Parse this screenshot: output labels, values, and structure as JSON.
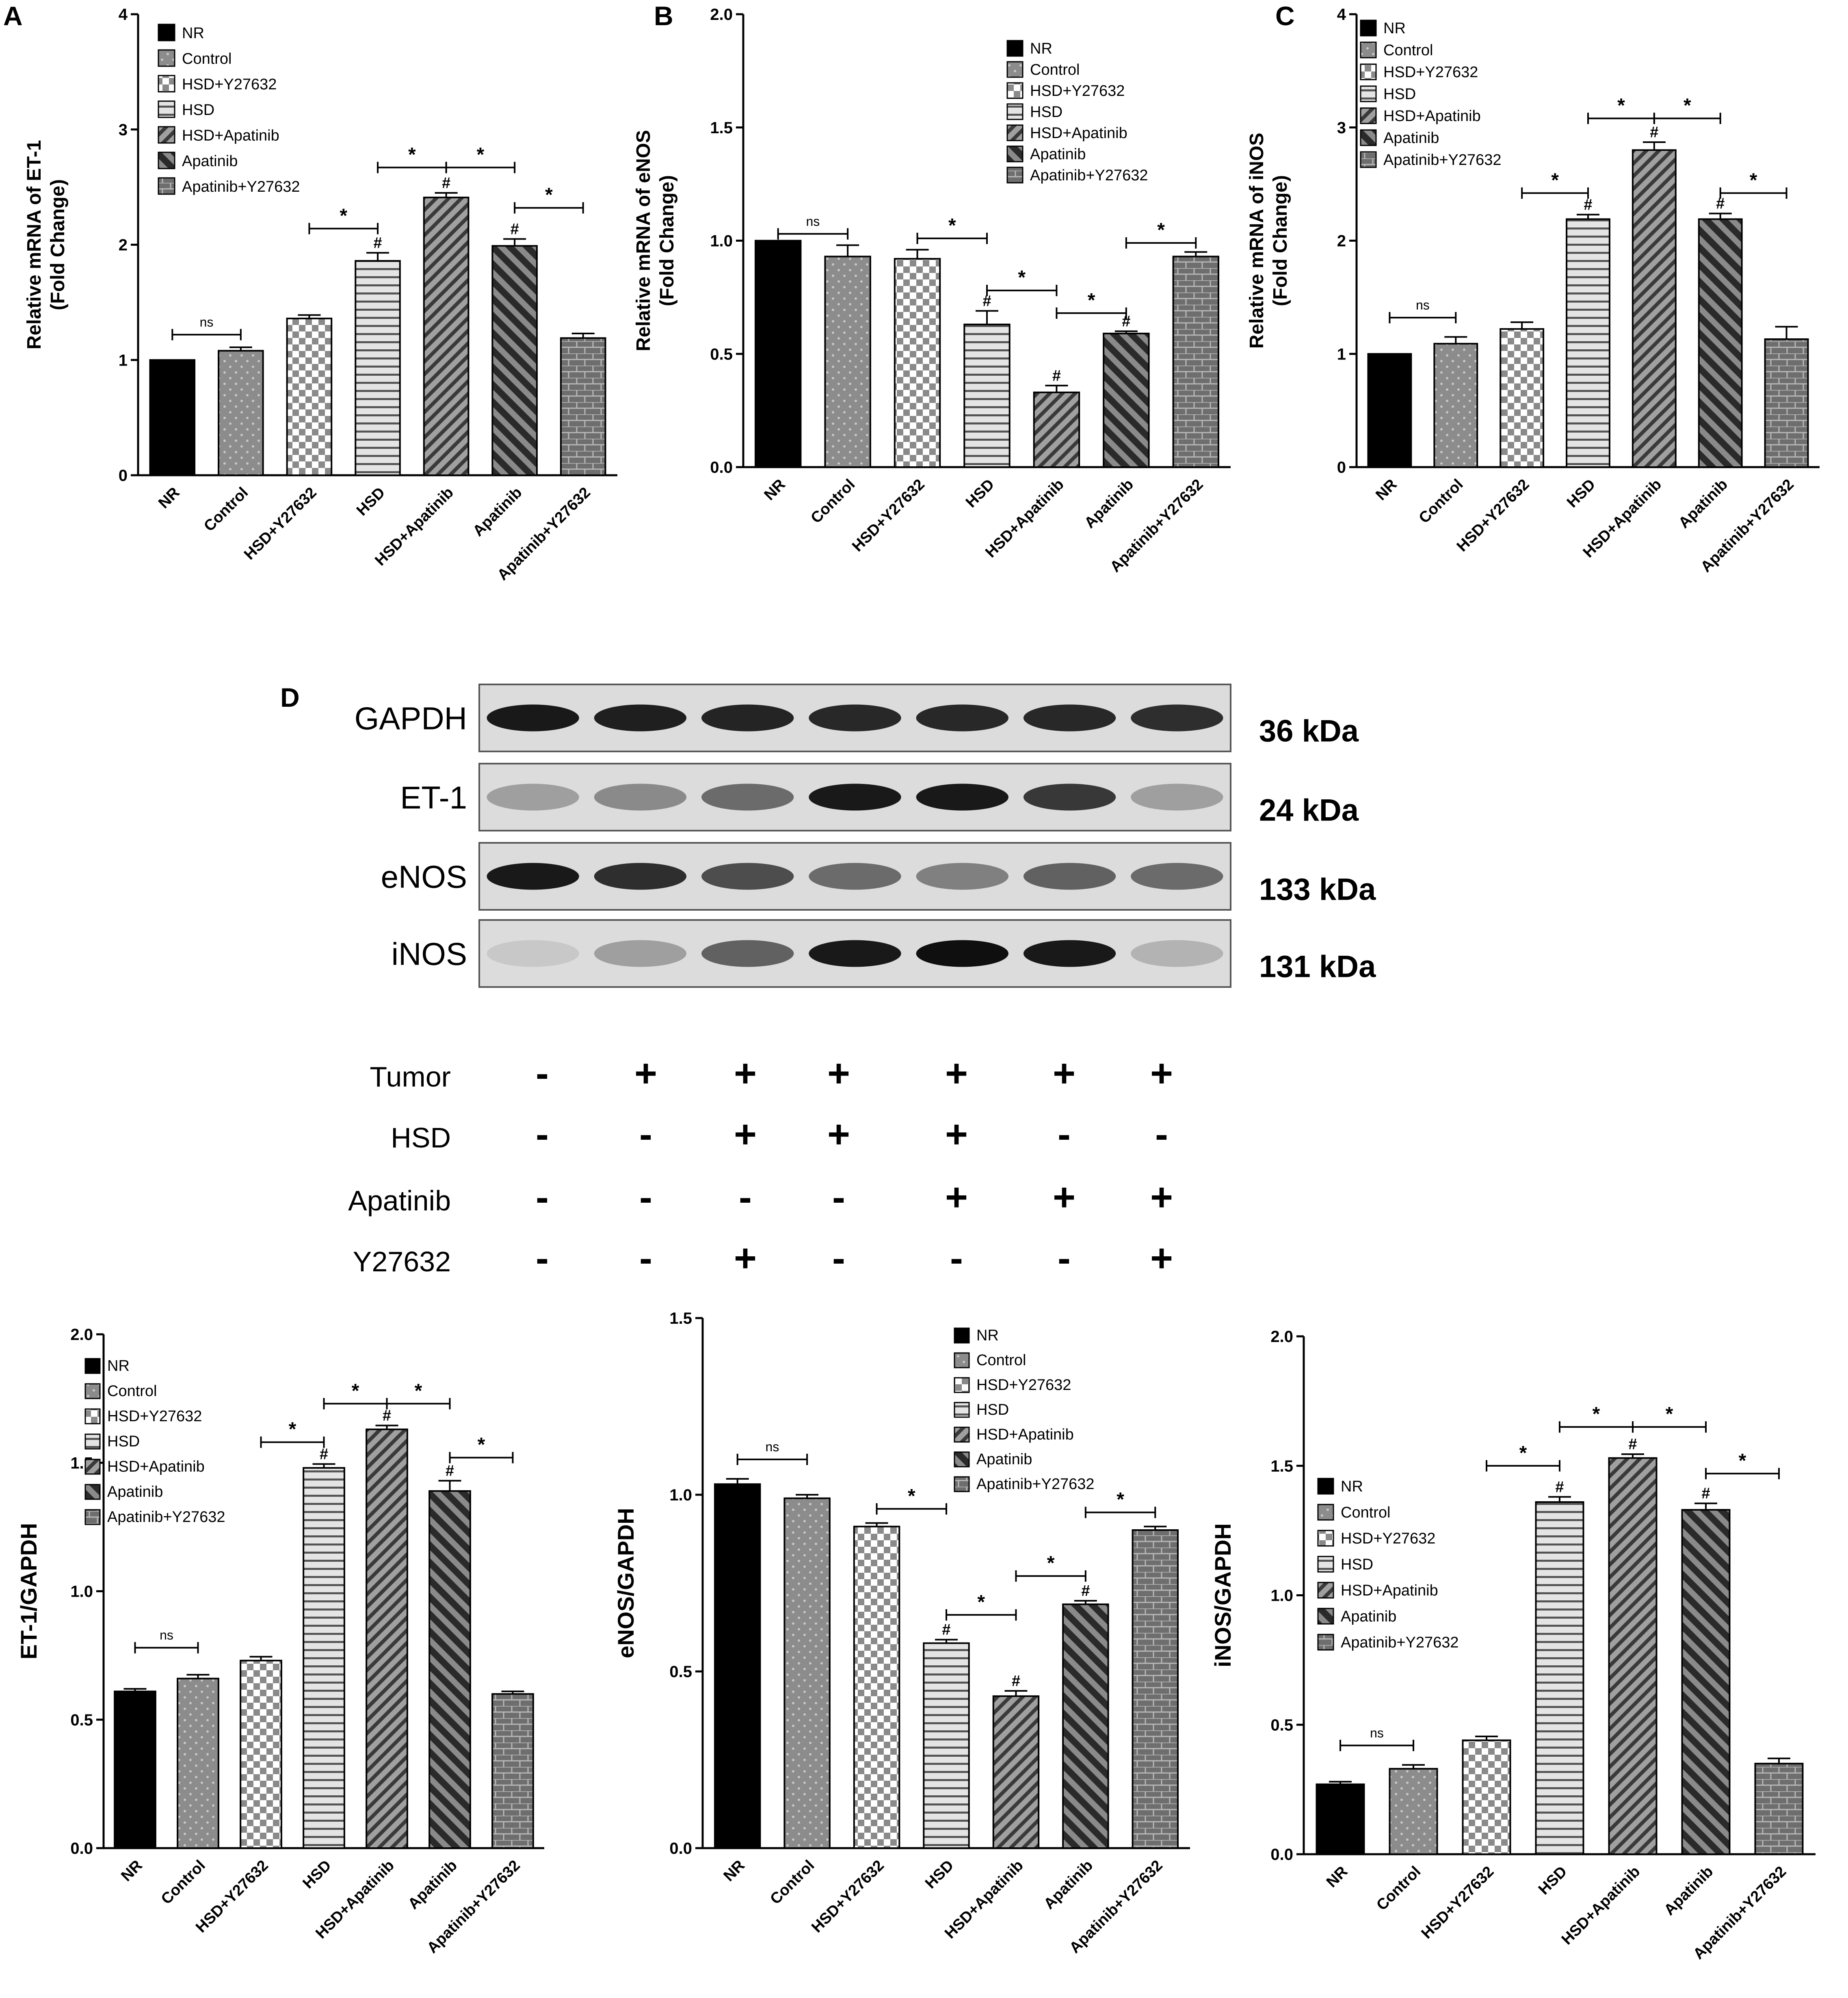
{
  "patterns": {
    "NR": "solid-black",
    "Control": "dark-gray-dotted",
    "HSD+Y27632": "checkerboard",
    "HSD": "horizontal-stripes",
    "HSD+Apatinib": "diagonal-stripes-right",
    "Apatinib": "diagonal-stripes-left-dark",
    "Apatinib+Y27632": "brick"
  },
  "colors": {
    "bar_outline": "#000000",
    "fill_dark": "#111111",
    "fill_mid": "#8c8c8c",
    "fill_light": "#d9d9d9",
    "background": "#ffffff"
  },
  "chart_data": [
    {
      "panel": "A",
      "type": "bar",
      "title": "",
      "ylabel_line1": "Relative mRNA of ET-1",
      "ylabel_line2": "(Fold Change)",
      "ylim": [
        0,
        4
      ],
      "yticks": [
        "0",
        "1",
        "2",
        "3",
        "4"
      ],
      "categories": [
        "NR",
        "Control",
        "HSD+Y27632",
        "HSD",
        "HSD+Apatinib",
        "Apatinib",
        "Apatinib+Y27632"
      ],
      "values": [
        1.0,
        1.08,
        1.36,
        1.86,
        2.41,
        1.99,
        1.19
      ],
      "errors": [
        0.0,
        0.03,
        0.03,
        0.07,
        0.04,
        0.06,
        0.04
      ],
      "hash_marks": [
        false,
        false,
        false,
        true,
        true,
        true,
        false
      ],
      "comparisons": [
        {
          "from": 0,
          "to": 1,
          "label": "ns",
          "y": 1.22
        },
        {
          "from": 2,
          "to": 3,
          "label": "*",
          "y": 2.14
        },
        {
          "from": 3,
          "to": 4,
          "label": "*",
          "y": 2.67
        },
        {
          "from": 4,
          "to": 5,
          "label": "*",
          "y": 2.67
        },
        {
          "from": 5,
          "to": 6,
          "label": "*",
          "y": 2.32
        }
      ],
      "legend": [
        "NR",
        "Control",
        "HSD+Y27632",
        "HSD",
        "HSD+Apatinib",
        "Apatinib",
        "Apatinib+Y27632"
      ],
      "legend_position": "top-left"
    },
    {
      "panel": "B",
      "type": "bar",
      "title": "",
      "ylabel_line1": "Relative mRNA of eNOS",
      "ylabel_line2": "(Fold Change)",
      "ylim": [
        0,
        2.0
      ],
      "yticks": [
        "0.0",
        "0.5",
        "1.0",
        "1.5",
        "2.0"
      ],
      "categories": [
        "NR",
        "Control",
        "HSD+Y27632",
        "HSD",
        "HSD+Apatinib",
        "Apatinib",
        "Apatinib+Y27632"
      ],
      "values": [
        1.0,
        0.93,
        0.92,
        0.63,
        0.33,
        0.59,
        0.93
      ],
      "errors": [
        0.0,
        0.05,
        0.04,
        0.06,
        0.03,
        0.01,
        0.02
      ],
      "hash_marks": [
        false,
        false,
        false,
        true,
        true,
        true,
        false
      ],
      "comparisons": [
        {
          "from": 0,
          "to": 1,
          "label": "ns",
          "y": 1.03
        },
        {
          "from": 2,
          "to": 3,
          "label": "*",
          "y": 1.01
        },
        {
          "from": 3,
          "to": 4,
          "label": "*",
          "y": 0.78
        },
        {
          "from": 4,
          "to": 5,
          "label": "*",
          "y": 0.68
        },
        {
          "from": 5,
          "to": 6,
          "label": "*",
          "y": 0.99
        }
      ],
      "legend": [
        "NR",
        "Control",
        "HSD+Y27632",
        "HSD",
        "HSD+Apatinib",
        "Apatinib",
        "Apatinib+Y27632"
      ],
      "legend_position": "top-right"
    },
    {
      "panel": "C",
      "type": "bar",
      "title": "",
      "ylabel_line1": "Relative mRNA of iNOS",
      "ylabel_line2": "(Fold Change)",
      "ylim": [
        0,
        4
      ],
      "yticks": [
        "0",
        "1",
        "2",
        "3",
        "4"
      ],
      "categories": [
        "NR",
        "Control",
        "HSD+Y27632",
        "HSD",
        "HSD+Apatinib",
        "Apatinib",
        "Apatinib+Y27632"
      ],
      "values": [
        1.0,
        1.09,
        1.22,
        2.19,
        2.8,
        2.19,
        1.13
      ],
      "errors": [
        0.0,
        0.06,
        0.06,
        0.04,
        0.07,
        0.05,
        0.11
      ],
      "hash_marks": [
        false,
        false,
        false,
        true,
        true,
        true,
        false
      ],
      "comparisons": [
        {
          "from": 0,
          "to": 1,
          "label": "ns",
          "y": 1.32
        },
        {
          "from": 2,
          "to": 3,
          "label": "*",
          "y": 2.42
        },
        {
          "from": 3,
          "to": 4,
          "label": "*",
          "y": 3.08
        },
        {
          "from": 4,
          "to": 5,
          "label": "*",
          "y": 3.08
        },
        {
          "from": 5,
          "to": 6,
          "label": "*",
          "y": 2.42
        }
      ],
      "legend": [
        "NR",
        "Control",
        "HSD+Y27632",
        "HSD",
        "HSD+Apatinib",
        "Apatinib",
        "Apatinib+Y27632"
      ],
      "legend_position": "top-left"
    },
    {
      "panel": "D-ET1",
      "type": "bar",
      "title": "",
      "ylabel_line1": "ET-1/GAPDH",
      "ylabel_line2": "",
      "ylim": [
        0,
        2.0
      ],
      "yticks": [
        "0.0",
        "0.5",
        "1.0",
        "1.5",
        "2.0"
      ],
      "categories": [
        "NR",
        "Control",
        "HSD+Y27632",
        "HSD",
        "HSD+Apatinib",
        "Apatinib",
        "Apatinib+Y27632"
      ],
      "values": [
        0.61,
        0.66,
        0.73,
        1.48,
        1.63,
        1.39,
        0.6
      ],
      "errors": [
        0.01,
        0.015,
        0.015,
        0.015,
        0.015,
        0.04,
        0.01
      ],
      "hash_marks": [
        false,
        false,
        false,
        true,
        true,
        true,
        false
      ],
      "comparisons": [
        {
          "from": 0,
          "to": 1,
          "label": "ns",
          "y": 0.78
        },
        {
          "from": 2,
          "to": 3,
          "label": "*",
          "y": 1.58
        },
        {
          "from": 3,
          "to": 4,
          "label": "*",
          "y": 1.73
        },
        {
          "from": 4,
          "to": 5,
          "label": "*",
          "y": 1.73
        },
        {
          "from": 5,
          "to": 6,
          "label": "*",
          "y": 1.52
        }
      ],
      "legend": [
        "NR",
        "Control",
        "HSD+Y27632",
        "HSD",
        "HSD+Apatinib",
        "Apatinib",
        "Apatinib+Y27632"
      ],
      "legend_position": "top-left"
    },
    {
      "panel": "D-eNOS",
      "type": "bar",
      "title": "",
      "ylabel_line1": "eNOS/GAPDH",
      "ylabel_line2": "",
      "ylim": [
        0,
        1.5
      ],
      "yticks": [
        "0.0",
        "0.5",
        "1.0",
        "1.5"
      ],
      "categories": [
        "NR",
        "Control",
        "HSD+Y27632",
        "HSD",
        "HSD+Apatinib",
        "Apatinib",
        "Apatinib+Y27632"
      ],
      "values": [
        1.03,
        0.99,
        0.91,
        0.58,
        0.43,
        0.69,
        0.9
      ],
      "errors": [
        0.015,
        0.01,
        0.01,
        0.01,
        0.015,
        0.01,
        0.01
      ],
      "hash_marks": [
        false,
        false,
        false,
        true,
        true,
        true,
        false
      ],
      "comparisons": [
        {
          "from": 0,
          "to": 1,
          "label": "ns",
          "y": 1.1
        },
        {
          "from": 2,
          "to": 3,
          "label": "*",
          "y": 0.96
        },
        {
          "from": 3,
          "to": 4,
          "label": "*",
          "y": 0.66
        },
        {
          "from": 4,
          "to": 5,
          "label": "*",
          "y": 0.77
        },
        {
          "from": 5,
          "to": 6,
          "label": "*",
          "y": 0.95
        }
      ],
      "legend": [
        "NR",
        "Control",
        "HSD+Y27632",
        "HSD",
        "HSD+Apatinib",
        "Apatinib",
        "Apatinib+Y27632"
      ],
      "legend_position": "top-right"
    },
    {
      "panel": "D-iNOS",
      "type": "bar",
      "title": "",
      "ylabel_line1": "iNOS/GAPDH",
      "ylabel_line2": "",
      "ylim": [
        0,
        2.0
      ],
      "yticks": [
        "0.0",
        "0.5",
        "1.0",
        "1.5",
        "2.0"
      ],
      "categories": [
        "NR",
        "Control",
        "HSD+Y27632",
        "HSD",
        "HSD+Apatinib",
        "Apatinib",
        "Apatinib+Y27632"
      ],
      "values": [
        0.27,
        0.33,
        0.44,
        1.36,
        1.53,
        1.33,
        0.35
      ],
      "errors": [
        0.01,
        0.015,
        0.015,
        0.02,
        0.015,
        0.025,
        0.02
      ],
      "hash_marks": [
        false,
        false,
        false,
        true,
        true,
        true,
        false
      ],
      "comparisons": [
        {
          "from": 0,
          "to": 1,
          "label": "ns",
          "y": 0.42
        },
        {
          "from": 2,
          "to": 3,
          "label": "*",
          "y": 1.5
        },
        {
          "from": 3,
          "to": 4,
          "label": "*",
          "y": 1.65
        },
        {
          "from": 4,
          "to": 5,
          "label": "*",
          "y": 1.65
        },
        {
          "from": 5,
          "to": 6,
          "label": "*",
          "y": 1.47
        }
      ],
      "legend": [
        "NR",
        "Control",
        "HSD+Y27632",
        "HSD",
        "HSD+Apatinib",
        "Apatinib",
        "Apatinib+Y27632"
      ],
      "legend_position": "middle-left"
    }
  ],
  "panel_labels": {
    "A": "A",
    "B": "B",
    "C": "C",
    "D": "D"
  },
  "blot": {
    "rows": [
      {
        "name": "GAPDH",
        "size": "36  kDa",
        "intensity": [
          0.95,
          0.92,
          0.9,
          0.88,
          0.88,
          0.88,
          0.85
        ]
      },
      {
        "name": "ET-1",
        "size": "24 kDa",
        "intensity": [
          0.3,
          0.4,
          0.55,
          0.95,
          0.95,
          0.8,
          0.3
        ]
      },
      {
        "name": "eNOS",
        "size": "133  kDa",
        "intensity": [
          0.95,
          0.85,
          0.7,
          0.55,
          0.45,
          0.6,
          0.55
        ]
      },
      {
        "name": "iNOS",
        "size": "131 kDa",
        "intensity": [
          0.1,
          0.3,
          0.6,
          0.95,
          1.0,
          0.95,
          0.2
        ]
      }
    ],
    "conditions": [
      {
        "name": "Tumor",
        "signs": [
          "-",
          "+",
          "+",
          "+",
          "+",
          "+",
          "+"
        ]
      },
      {
        "name": "HSD",
        "signs": [
          "-",
          "-",
          "+",
          "+",
          "+",
          "-",
          "-"
        ]
      },
      {
        "name": "Apatinib",
        "signs": [
          "-",
          "-",
          "-",
          "-",
          "+",
          "+",
          "+"
        ]
      },
      {
        "name": "Y27632",
        "signs": [
          "-",
          "-",
          "+",
          "-",
          "-",
          "-",
          "+"
        ]
      }
    ]
  },
  "significance_marks": {
    "hash": "#"
  }
}
